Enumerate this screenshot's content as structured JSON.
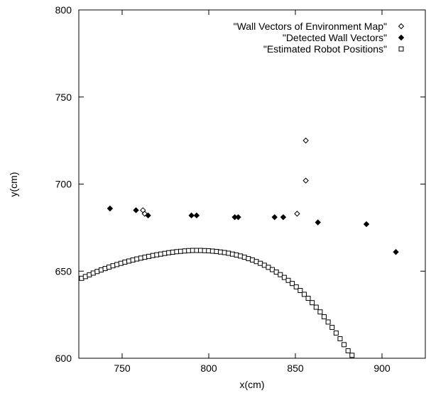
{
  "chart_data": {
    "type": "scatter",
    "xlabel": "x(cm)",
    "ylabel": "y(cm)",
    "xlim": [
      725,
      925
    ],
    "ylim": [
      600,
      800
    ],
    "xticks": [
      750,
      800,
      850,
      900
    ],
    "yticks": [
      600,
      650,
      700,
      750,
      800
    ],
    "tick_labels_x": [
      "750",
      "800",
      "850",
      "900"
    ],
    "tick_labels_y": [
      "600",
      "650",
      "700",
      "750",
      "800"
    ],
    "legend_position": "top-right",
    "grid": false,
    "series": [
      {
        "name": "\"Wall Vectors of Environment Map\"",
        "marker": "diamond-open",
        "points": [
          [
            762,
            685
          ],
          [
            763,
            683
          ],
          [
            851,
            683
          ],
          [
            856,
            725
          ],
          [
            856,
            702
          ]
        ]
      },
      {
        "name": "\"Detected Wall Vectors\"",
        "marker": "diamond-filled",
        "points": [
          [
            743,
            686
          ],
          [
            758,
            685
          ],
          [
            765,
            682
          ],
          [
            790,
            682
          ],
          [
            793,
            682
          ],
          [
            815,
            681
          ],
          [
            817,
            681
          ],
          [
            838,
            681
          ],
          [
            843,
            681
          ],
          [
            863,
            678
          ],
          [
            891,
            677
          ],
          [
            908,
            661
          ]
        ]
      },
      {
        "name": "\"Estimated Robot Positions\"",
        "marker": "square-open",
        "points": [
          [
            726.6,
            645.9
          ],
          [
            728.8,
            646.9
          ],
          [
            731.1,
            647.9
          ],
          [
            733.3,
            648.9
          ],
          [
            735.6,
            649.8
          ],
          [
            737.9,
            650.7
          ],
          [
            740.2,
            651.5
          ],
          [
            742.4,
            652.3
          ],
          [
            744.7,
            653.1
          ],
          [
            747.0,
            653.8
          ],
          [
            749.3,
            654.5
          ],
          [
            751.6,
            655.2
          ],
          [
            753.9,
            655.8
          ],
          [
            756.2,
            656.4
          ],
          [
            758.5,
            657.0
          ],
          [
            760.8,
            657.5
          ],
          [
            763.1,
            658.0
          ],
          [
            765.4,
            658.5
          ],
          [
            767.7,
            659.0
          ],
          [
            770.0,
            659.4
          ],
          [
            772.3,
            659.8
          ],
          [
            774.6,
            660.2
          ],
          [
            776.9,
            660.6
          ],
          [
            779.2,
            660.9
          ],
          [
            781.5,
            661.2
          ],
          [
            783.8,
            661.4
          ],
          [
            786.1,
            661.6
          ],
          [
            788.4,
            661.8
          ],
          [
            790.7,
            661.9
          ],
          [
            793.0,
            661.9
          ],
          [
            795.3,
            661.9
          ],
          [
            797.6,
            661.8
          ],
          [
            799.9,
            661.7
          ],
          [
            802.2,
            661.5
          ],
          [
            804.5,
            661.3
          ],
          [
            806.8,
            661.0
          ],
          [
            809.1,
            660.7
          ],
          [
            811.4,
            660.3
          ],
          [
            813.7,
            659.8
          ],
          [
            816.0,
            659.3
          ],
          [
            818.3,
            658.7
          ],
          [
            820.6,
            658.0
          ],
          [
            822.9,
            657.2
          ],
          [
            825.2,
            656.4
          ],
          [
            827.5,
            655.5
          ],
          [
            829.8,
            654.5
          ],
          [
            832.1,
            653.4
          ],
          [
            834.4,
            652.2
          ],
          [
            836.7,
            650.9
          ],
          [
            839.0,
            649.5
          ],
          [
            841.3,
            648.0
          ],
          [
            843.6,
            646.4
          ],
          [
            845.9,
            644.7
          ],
          [
            848.2,
            642.9
          ],
          [
            850.5,
            641.0
          ],
          [
            852.8,
            638.9
          ],
          [
            855.1,
            636.7
          ],
          [
            857.4,
            634.4
          ],
          [
            859.7,
            631.9
          ],
          [
            862.0,
            629.3
          ],
          [
            864.3,
            626.6
          ],
          [
            866.6,
            623.8
          ],
          [
            868.9,
            620.8
          ],
          [
            871.2,
            617.7
          ],
          [
            873.5,
            614.5
          ],
          [
            875.8,
            611.2
          ],
          [
            878.1,
            607.8
          ],
          [
            880.4,
            604.3
          ],
          [
            882.7,
            601.7
          ]
        ]
      }
    ]
  }
}
